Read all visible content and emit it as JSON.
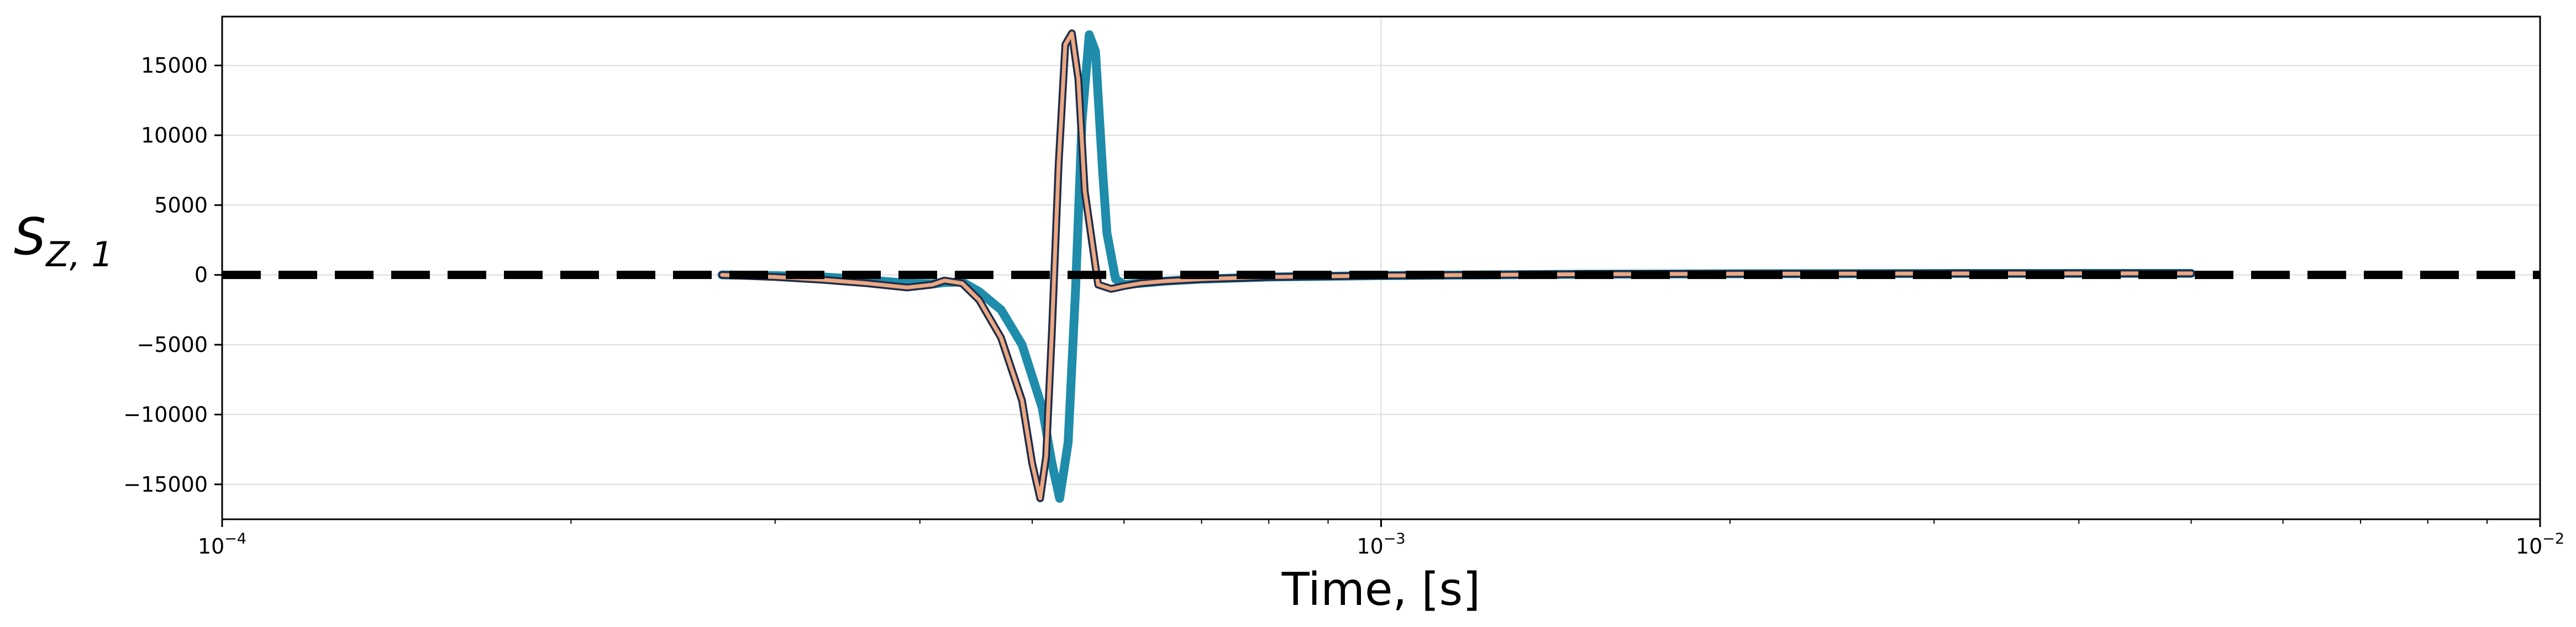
{
  "chart_data": {
    "type": "line",
    "xscale": "log",
    "xlim": [
      0.0001,
      0.01
    ],
    "ylim": [
      -17500,
      18500
    ],
    "xlabel": "Time, [s]",
    "ylabel": {
      "main": "S",
      "sub": "Z, 1"
    },
    "grid": true,
    "x_ticks": [
      {
        "value": 0.0001,
        "base": "10",
        "exp": "−4"
      },
      {
        "value": 0.001,
        "base": "10",
        "exp": "−3"
      },
      {
        "value": 0.01,
        "base": "10",
        "exp": "−2"
      }
    ],
    "y_ticks": [
      {
        "value": 15000,
        "label": "15000"
      },
      {
        "value": 10000,
        "label": "10000"
      },
      {
        "value": 5000,
        "label": "5000"
      },
      {
        "value": 0,
        "label": "0"
      },
      {
        "value": -5000,
        "label": "−5000"
      },
      {
        "value": -10000,
        "label": "−10000"
      },
      {
        "value": -15000,
        "label": "−15000"
      }
    ],
    "series": [
      {
        "color": "#1e8caa",
        "style": "solid-thick",
        "x": [
          0.00027,
          0.0003,
          0.00033,
          0.00036,
          0.00039,
          0.00041,
          0.00042,
          0.000435,
          0.00045,
          0.00047,
          0.00049,
          0.00051,
          0.00052,
          0.000528,
          0.000537,
          0.000545,
          0.000552,
          0.00056,
          0.000567,
          0.000575,
          0.00058,
          0.00059,
          0.0006,
          0.00062,
          0.00065,
          0.0007,
          0.0008,
          0.001,
          0.0015,
          0.002,
          0.003,
          0.004,
          0.005
        ],
        "y": [
          0,
          -50,
          -150,
          -350,
          -600,
          -650,
          -550,
          -500,
          -1200,
          -2500,
          -5000,
          -9500,
          -13500,
          -16000,
          -12000,
          -1000,
          11000,
          17200,
          16000,
          7500,
          3000,
          -300,
          -700,
          -600,
          -450,
          -300,
          -150,
          -50,
          50,
          80,
          100,
          110,
          110
        ]
      },
      {
        "color": "#1e2d4a",
        "style": "solid",
        "x": [
          0.00027,
          0.0003,
          0.00033,
          0.00036,
          0.00039,
          0.00041,
          0.00042,
          0.000435,
          0.00045,
          0.00047,
          0.00049,
          0.0005,
          0.000508,
          0.000514,
          0.00052,
          0.000527,
          0.000534,
          0.000541,
          0.000548,
          0.000555,
          0.00057,
          0.000585,
          0.0006,
          0.00062,
          0.00065,
          0.0007,
          0.0008,
          0.001,
          0.0015,
          0.002,
          0.003,
          0.004,
          0.005
        ],
        "y": [
          0,
          -150,
          -350,
          -600,
          -900,
          -700,
          -400,
          -600,
          -1800,
          -4500,
          -9000,
          -13500,
          -16000,
          -13000,
          -4000,
          8000,
          16500,
          17300,
          14000,
          6000,
          -700,
          -1000,
          -800,
          -600,
          -450,
          -300,
          -150,
          -50,
          50,
          80,
          100,
          110,
          110
        ]
      },
      {
        "color": "#eba882",
        "style": "solid-inner",
        "x": [
          0.00027,
          0.0003,
          0.00033,
          0.00036,
          0.00039,
          0.00041,
          0.00042,
          0.000435,
          0.00045,
          0.00047,
          0.00049,
          0.0005,
          0.000508,
          0.000514,
          0.00052,
          0.000527,
          0.000534,
          0.000541,
          0.000548,
          0.000555,
          0.00057,
          0.000585,
          0.0006,
          0.00062,
          0.00065,
          0.0007,
          0.0008,
          0.001,
          0.0015,
          0.002,
          0.003,
          0.004,
          0.005
        ],
        "y": [
          0,
          -150,
          -350,
          -600,
          -900,
          -700,
          -400,
          -600,
          -1800,
          -4500,
          -9000,
          -13500,
          -16000,
          -13000,
          -4000,
          8000,
          16500,
          17300,
          14000,
          6000,
          -700,
          -1000,
          -800,
          -600,
          -450,
          -300,
          -150,
          -50,
          50,
          80,
          100,
          110,
          110
        ]
      },
      {
        "color": "#000000",
        "style": "dashed",
        "x": [
          0.0001,
          0.01
        ],
        "y": [
          0,
          0
        ]
      }
    ]
  }
}
